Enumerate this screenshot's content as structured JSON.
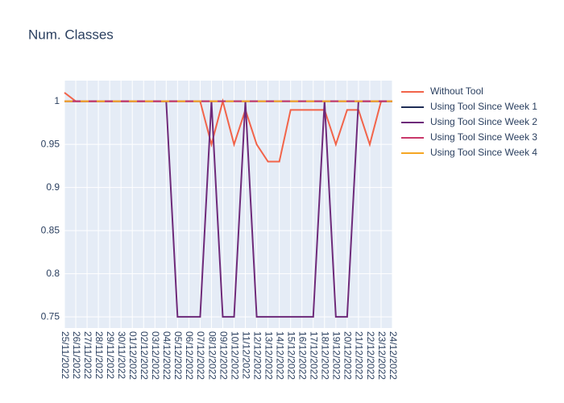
{
  "chart_data": {
    "type": "line",
    "title": "Num. Classes",
    "categories": [
      "25/11/2022",
      "26/11/2022",
      "27/11/2022",
      "28/11/2022",
      "29/11/2022",
      "30/11/2022",
      "01/12/2022",
      "02/12/2022",
      "03/12/2022",
      "04/12/2022",
      "05/12/2022",
      "06/12/2022",
      "07/12/2022",
      "08/12/2022",
      "09/12/2022",
      "10/12/2022",
      "11/12/2022",
      "12/12/2022",
      "13/12/2022",
      "14/12/2022",
      "15/12/2022",
      "16/12/2022",
      "17/12/2022",
      "18/12/2022",
      "19/12/2022",
      "20/12/2022",
      "21/12/2022",
      "22/12/2022",
      "23/12/2022",
      "24/12/2022"
    ],
    "series": [
      {
        "name": "Without Tool",
        "color": "#f2644a",
        "values": [
          1.01,
          1,
          1,
          1,
          1,
          1,
          1,
          1,
          1,
          1,
          1,
          1,
          1,
          0.95,
          1,
          0.95,
          0.99,
          0.95,
          0.93,
          0.93,
          0.99,
          0.99,
          0.99,
          0.99,
          0.95,
          0.99,
          0.99,
          0.95,
          1,
          1
        ]
      },
      {
        "name": "Using Tool Since Week 1",
        "color": "#1f2d56",
        "values": [
          1,
          1,
          1,
          1,
          1,
          1,
          1,
          1,
          1,
          1,
          1,
          1,
          1,
          1,
          1,
          1,
          1,
          1,
          1,
          1,
          1,
          1,
          1,
          1,
          1,
          1,
          1,
          1,
          1,
          1
        ]
      },
      {
        "name": "Using Tool Since Week 2",
        "color": "#6e2a7a",
        "values": [
          1,
          1,
          1,
          1,
          1,
          1,
          1,
          1,
          1,
          1,
          0.75,
          0.75,
          0.75,
          1,
          0.75,
          0.75,
          1,
          0.75,
          0.75,
          0.75,
          0.75,
          0.75,
          0.75,
          1,
          0.75,
          0.75,
          1,
          1,
          1,
          1
        ]
      },
      {
        "name": "Using Tool Since Week 3",
        "color": "#c9386a",
        "values": [
          1,
          1,
          1,
          1,
          1,
          1,
          1,
          1,
          1,
          1,
          1,
          1,
          1,
          1,
          1,
          1,
          1,
          1,
          1,
          1,
          1,
          1,
          1,
          1,
          1,
          1,
          1,
          1,
          1,
          1
        ]
      },
      {
        "name": "Using Tool Since Week 4",
        "color": "#f5a623",
        "values": [
          1,
          1,
          1,
          1,
          1,
          1,
          1,
          1,
          1,
          1,
          1,
          1,
          1,
          1,
          1,
          1,
          1,
          1,
          1,
          1,
          1,
          1,
          1,
          1,
          1,
          1,
          1,
          1,
          1,
          1
        ]
      }
    ],
    "ylim": [
      0.737,
      1.024
    ],
    "yticks": [
      0.75,
      0.8,
      0.85,
      0.9,
      0.95,
      1
    ],
    "grid": true,
    "legend": "right"
  }
}
